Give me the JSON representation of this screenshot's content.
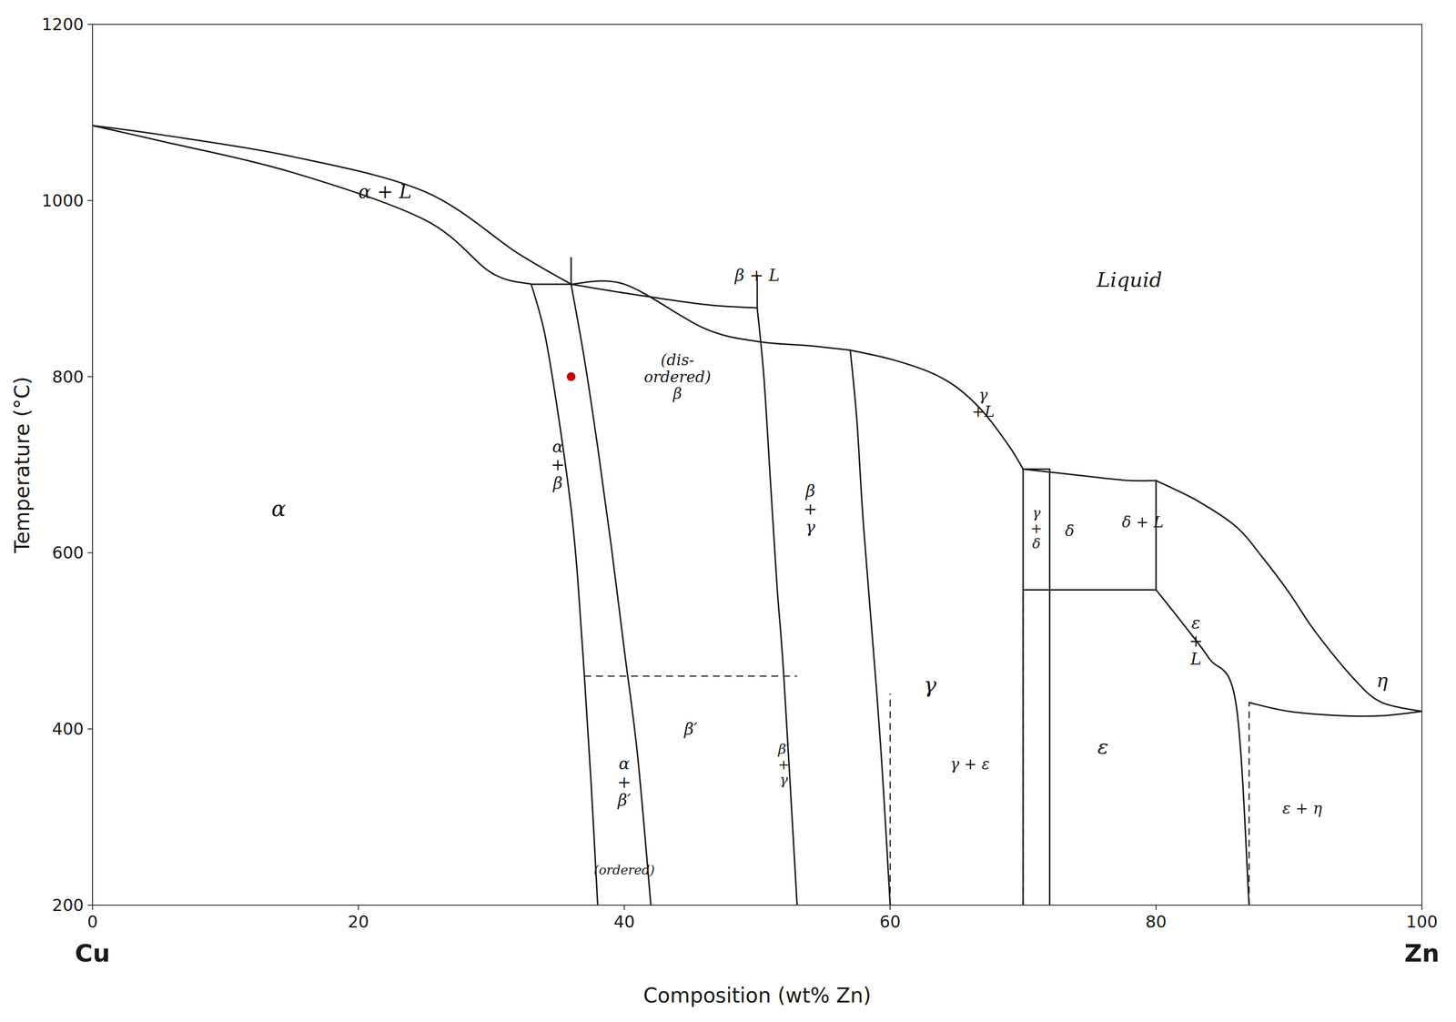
{
  "chart_data": {
    "type": "line",
    "xlabel": "Composition (wt% Zn)",
    "ylabel": "Temperature (°C)",
    "xlim": [
      0,
      100
    ],
    "ylim": [
      200,
      1200
    ],
    "xticks": [
      0,
      20,
      40,
      60,
      80,
      100
    ],
    "yticks": [
      200,
      400,
      600,
      800,
      1000,
      1200
    ],
    "grid": false,
    "color": "#1a1a1a",
    "series": [
      {
        "x": [
          0,
          5,
          15,
          25,
          32,
          36
        ],
        "values": [
          1085,
          1075,
          1050,
          1010,
          940,
          905
        ],
        "line_style": "solid"
      },
      {
        "x": [
          0,
          5,
          15,
          25,
          30,
          33
        ],
        "values": [
          1085,
          1068,
          1032,
          978,
          918,
          905
        ],
        "line_style": "solid"
      },
      {
        "x": [
          36,
          40,
          46,
          50,
          54,
          57
        ],
        "values": [
          905,
          905,
          855,
          840,
          835,
          830
        ],
        "line_style": "solid"
      },
      {
        "x": [
          57,
          60,
          63,
          65,
          67,
          69,
          70
        ],
        "values": [
          830,
          820,
          805,
          788,
          760,
          720,
          695
        ],
        "line_style": "solid"
      },
      {
        "x": [
          70,
          73,
          76,
          78,
          80
        ],
        "values": [
          695,
          690,
          685,
          682,
          682
        ],
        "line_style": "solid"
      },
      {
        "x": [
          80,
          83,
          86,
          88,
          90,
          92,
          95,
          97,
          100
        ],
        "values": [
          682,
          660,
          630,
          595,
          555,
          510,
          455,
          430,
          420
        ],
        "line_style": "solid"
      },
      {
        "x": [
          70,
          72
        ],
        "values": [
          695,
          695
        ],
        "line_style": "solid"
      },
      {
        "x": [
          33,
          36
        ],
        "values": [
          905,
          905
        ],
        "line_style": "solid"
      },
      {
        "x": [
          33,
          34,
          35,
          36,
          36.5,
          37,
          37.5,
          38
        ],
        "values": [
          905,
          850,
          760,
          650,
          570,
          460,
          340,
          200
        ],
        "line_style": "solid"
      },
      {
        "x": [
          36,
          37,
          38,
          39,
          40,
          41,
          42
        ],
        "values": [
          905,
          820,
          720,
          610,
          490,
          370,
          200
        ],
        "line_style": "solid"
      },
      {
        "x": [
          36,
          40,
          46,
          50
        ],
        "values": [
          905,
          895,
          882,
          878
        ],
        "line_style": "solid"
      },
      {
        "x": [
          50,
          50.5,
          51,
          51.5,
          52,
          53
        ],
        "values": [
          878,
          800,
          680,
          560,
          460,
          200
        ],
        "line_style": "solid"
      },
      {
        "x": [
          57,
          57.5,
          58,
          59,
          59.5,
          60
        ],
        "values": [
          830,
          750,
          630,
          440,
          330,
          200
        ],
        "line_style": "solid"
      },
      {
        "x": [
          70,
          70,
          70
        ],
        "values": [
          695,
          560,
          200
        ],
        "line_style": "solid"
      },
      {
        "x": [
          72,
          72
        ],
        "values": [
          695,
          558
        ],
        "line_style": "solid"
      },
      {
        "x": [
          70,
          72
        ],
        "values": [
          558,
          558
        ],
        "line_style": "solid"
      },
      {
        "x": [
          72,
          72
        ],
        "values": [
          558,
          200
        ],
        "line_style": "solid"
      },
      {
        "x": [
          72,
          80
        ],
        "values": [
          558,
          558
        ],
        "line_style": "solid"
      },
      {
        "x": [
          80,
          80
        ],
        "values": [
          558,
          682
        ],
        "line_style": "solid"
      },
      {
        "x": [
          80,
          82,
          84,
          86,
          87
        ],
        "values": [
          558,
          520,
          480,
          430,
          200
        ],
        "line_style": "solid"
      },
      {
        "x": [
          87,
          90,
          94,
          97,
          100
        ],
        "values": [
          430,
          420,
          415,
          415,
          420
        ],
        "line_style": "solid"
      },
      {
        "x": [
          100,
          100
        ],
        "values": [
          420,
          420
        ],
        "line_style": "solid"
      },
      {
        "x": [
          37,
          53
        ],
        "values": [
          460,
          460
        ],
        "line_style": "dashed"
      },
      {
        "x": [
          60,
          60
        ],
        "values": [
          200,
          440
        ],
        "line_style": "dashed"
      },
      {
        "x": [
          70,
          70
        ],
        "values": [
          200,
          558
        ],
        "line_style": "dashed"
      },
      {
        "x": [
          87,
          87
        ],
        "values": [
          200,
          430
        ],
        "line_style": "dashed"
      },
      {
        "x": [
          36,
          36
        ],
        "values": [
          905,
          935
        ],
        "line_style": "solid"
      },
      {
        "x": [
          50,
          50
        ],
        "values": [
          878,
          915
        ],
        "line_style": "solid"
      },
      {
        "type": "scatter",
        "x": [
          36
        ],
        "values": [
          800
        ],
        "color": "#cc0000",
        "marker": "circle"
      }
    ],
    "annotations": [
      {
        "text": "α",
        "x": 14,
        "y": 650
      },
      {
        "text": "Liquid",
        "x": 78,
        "y": 910
      },
      {
        "text": "α + L",
        "x": 22,
        "y": 1010
      },
      {
        "text": "β + L",
        "x": 50,
        "y": 915
      },
      {
        "text": "(dis-\nordered)\nβ",
        "x": 44,
        "y": 800
      },
      {
        "text": "α\n+\nβ",
        "x": 35,
        "y": 700
      },
      {
        "text": "β\n+\nγ",
        "x": 54,
        "y": 650
      },
      {
        "text": "γ",
        "x": 63,
        "y": 450
      },
      {
        "text": "γ\n+L",
        "x": 67,
        "y": 770
      },
      {
        "text": "γ\n+\nδ",
        "x": 71,
        "y": 628
      },
      {
        "text": "δ",
        "x": 73.5,
        "y": 625
      },
      {
        "text": "δ + L",
        "x": 79,
        "y": 635
      },
      {
        "text": "ε",
        "x": 76,
        "y": 380
      },
      {
        "text": "ε\n+\nL",
        "x": 83,
        "y": 500
      },
      {
        "text": "γ + ε",
        "x": 66,
        "y": 360
      },
      {
        "text": "ε + η",
        "x": 91,
        "y": 310
      },
      {
        "text": "η",
        "x": 97,
        "y": 455
      },
      {
        "text": "α\n+\nβ′",
        "x": 40,
        "y": 340
      },
      {
        "text": "(ordered)",
        "x": 40,
        "y": 240
      },
      {
        "text": "β′",
        "x": 45,
        "y": 400
      },
      {
        "text": "β′\n+\nγ",
        "x": 52,
        "y": 360
      }
    ],
    "axis_end_labels": [
      {
        "text": "Cu",
        "x": 0
      },
      {
        "text": "Zn",
        "x": 100
      }
    ]
  }
}
